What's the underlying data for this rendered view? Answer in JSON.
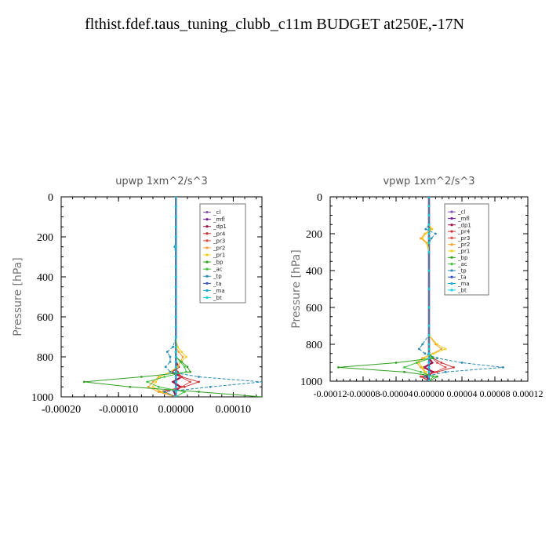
{
  "title": "flthist.fdef.taus_tuning_clubb_c11m  BUDGET at250E,-17N",
  "colors": {
    "_cl": "#8a4fb0",
    "_mfl": "#7a1fa0",
    "_dp1": "#a0144a",
    "_pr4": "#c83232",
    "_pr3": "#e04848",
    "_pr2": "#f0a030",
    "_pr1": "#f0d020",
    "_bp": "#30a020",
    "_ac": "#40c040",
    "_tp": "#2a8ab0",
    "_ta": "#3050c0",
    "_ma": "#20a0d0",
    "_bt": "#10d0e0"
  },
  "chart_data": [
    {
      "type": "line",
      "title": "upwp   1xm^2/s^3",
      "ylabel": "Pressure [hPa]",
      "xlabel": "",
      "xlim": [
        -0.0002,
        0.00015
      ],
      "ylim": [
        1000,
        0
      ],
      "xticks": [
        -0.0002,
        -0.0001,
        0.0,
        0.0001
      ],
      "xtick_labels": [
        "-0.00020",
        "-0.00010",
        "0.00000",
        "0.00010"
      ],
      "yticks": [
        0,
        200,
        400,
        600,
        800,
        1000
      ],
      "ytick_labels": [
        "0",
        "200",
        "400",
        "600",
        "800",
        "1000"
      ],
      "legend": [
        "_cl",
        "_mfl",
        "_dp1",
        "_pr4",
        "_pr3",
        "_pr2",
        "_pr1",
        "_bp",
        "_ac",
        "_tp",
        "_ta",
        "_ma",
        "_bt"
      ],
      "legend_position": "top-right",
      "pressure": [
        0,
        50,
        100,
        150,
        200,
        250,
        300,
        350,
        400,
        450,
        500,
        550,
        600,
        650,
        700,
        750,
        775,
        800,
        825,
        850,
        875,
        900,
        925,
        950,
        975,
        1000
      ],
      "series": [
        {
          "name": "_cl",
          "values": [
            0,
            0,
            0,
            0,
            0,
            0,
            0,
            0,
            0,
            0,
            0,
            0,
            0,
            0,
            0,
            0,
            0,
            0,
            0,
            0,
            0,
            0,
            0,
            0,
            0,
            0
          ]
        },
        {
          "name": "_mfl",
          "values": [
            0,
            0,
            0,
            0,
            0,
            0,
            0,
            0,
            0,
            0,
            0,
            0,
            0,
            0,
            0,
            0,
            0,
            0,
            0,
            0,
            0,
            0,
            0,
            0,
            0,
            0
          ]
        },
        {
          "name": "_dp1",
          "values": [
            0,
            0,
            0,
            0,
            0,
            0,
            0,
            0,
            0,
            0,
            0,
            0,
            0,
            0,
            0,
            0,
            0,
            0,
            0,
            5e-06,
            -8e-06,
            1e-05,
            -5e-06,
            8e-06,
            -3e-06,
            0
          ]
        },
        {
          "name": "_pr4",
          "values": [
            0,
            0,
            0,
            0,
            0,
            0,
            0,
            0,
            0,
            0,
            0,
            0,
            0,
            0,
            0,
            0,
            0,
            0,
            0,
            0,
            3e-06,
            1e-05,
            4e-05,
            1.5e-05,
            -3e-05,
            0
          ]
        },
        {
          "name": "_pr3",
          "values": [
            0,
            0,
            0,
            0,
            0,
            0,
            0,
            0,
            0,
            0,
            0,
            0,
            0,
            0,
            0,
            0,
            0,
            0,
            0,
            0,
            2e-06,
            8e-06,
            2.5e-05,
            1e-05,
            -2e-05,
            0
          ]
        },
        {
          "name": "_pr2",
          "values": [
            0,
            0,
            0,
            0,
            0,
            0,
            0,
            0,
            0,
            0,
            0,
            0,
            0,
            0,
            0,
            0,
            5e-06,
            1.2e-05,
            8e-06,
            2e-06,
            -8e-06,
            -3e-05,
            -4e-05,
            -4.8e-05,
            -3e-05,
            0
          ]
        },
        {
          "name": "_pr1",
          "values": [
            0,
            0,
            0,
            0,
            0,
            0,
            0,
            0,
            0,
            0,
            0,
            0,
            0,
            0,
            0,
            3e-06,
            1e-05,
            1.8e-05,
            8e-06,
            3e-06,
            -1e-05,
            -2.8e-05,
            -3.5e-05,
            -4e-05,
            -2.5e-05,
            0
          ]
        },
        {
          "name": "_bp",
          "values": [
            0,
            0,
            0,
            0,
            0,
            0,
            0,
            0,
            0,
            0,
            0,
            0,
            0,
            0,
            0,
            0,
            0,
            0,
            1e-05,
            2e-05,
            2.5e-05,
            -6e-05,
            -0.00016,
            -8e-05,
            4e-05,
            0.00015
          ]
        },
        {
          "name": "_ac",
          "values": [
            0,
            0,
            0,
            0,
            0,
            0,
            0,
            0,
            0,
            0,
            0,
            0,
            0,
            0,
            0,
            0,
            0,
            0,
            8e-06,
            1.5e-05,
            1.8e-05,
            -2e-05,
            -5e-05,
            -3e-05,
            1.5e-05,
            0
          ]
        },
        {
          "name": "_tp",
          "values": [
            0,
            0,
            0,
            0,
            0,
            -2e-06,
            0,
            0,
            0,
            0,
            0,
            0,
            0,
            0,
            0,
            -5e-06,
            -1.5e-05,
            -1e-05,
            -1e-05,
            -1.8e-05,
            -1e-05,
            4e-05,
            0.00015,
            6e-05,
            -2e-05,
            0
          ]
        },
        {
          "name": "_ta",
          "values": [
            0,
            0,
            0,
            0,
            0,
            0,
            0,
            0,
            0,
            0,
            0,
            0,
            0,
            0,
            0,
            0,
            0,
            0,
            0,
            0,
            0,
            0,
            0,
            0,
            0,
            0
          ]
        },
        {
          "name": "_ma",
          "values": [
            0,
            0,
            0,
            0,
            0,
            0,
            0,
            0,
            0,
            0,
            0,
            0,
            0,
            0,
            0,
            0,
            0,
            0,
            0,
            0,
            0,
            0,
            0,
            0,
            0,
            0
          ]
        },
        {
          "name": "_bt",
          "values": [
            0,
            0,
            0,
            0,
            0,
            0,
            0,
            0,
            0,
            0,
            0,
            0,
            0,
            0,
            0,
            0,
            0,
            0,
            0,
            0,
            0,
            0,
            0,
            0,
            0,
            0
          ]
        }
      ]
    },
    {
      "type": "line",
      "title": "vpwp   1xm^2/s^3",
      "ylabel": "Pressure [hPa]",
      "xlabel": "",
      "xlim": [
        -0.00012,
        0.00012
      ],
      "ylim": [
        1000,
        0
      ],
      "xticks": [
        -0.00012,
        -8e-05,
        -4e-05,
        0.0,
        4e-05,
        8e-05,
        0.00012
      ],
      "xtick_labels": [
        "-0.00012",
        "-0.00008",
        "-0.00004",
        "0.00000",
        "0.00004",
        "0.00008",
        "0.00012"
      ],
      "yticks": [
        0,
        200,
        400,
        600,
        800,
        1000
      ],
      "ytick_labels": [
        "0",
        "200",
        "400",
        "600",
        "800",
        "1000"
      ],
      "legend": [
        "_cl",
        "_mfl",
        "_dp1",
        "_pr4",
        "_pr3",
        "_pr2",
        "_pr1",
        "_bp",
        "_ac",
        "_tp",
        "_ta",
        "_ma",
        "_bt"
      ],
      "legend_position": "top-right",
      "pressure": [
        0,
        50,
        100,
        150,
        175,
        200,
        225,
        250,
        300,
        400,
        500,
        600,
        700,
        750,
        800,
        825,
        850,
        875,
        900,
        925,
        950,
        975,
        1000
      ],
      "series": [
        {
          "name": "_cl",
          "values": [
            0,
            0,
            0,
            0,
            0,
            0,
            0,
            0,
            0,
            0,
            0,
            0,
            0,
            0,
            0,
            0,
            0,
            0,
            0,
            0,
            0,
            0,
            0
          ]
        },
        {
          "name": "_mfl",
          "values": [
            0,
            0,
            0,
            0,
            0,
            0,
            0,
            0,
            0,
            0,
            0,
            0,
            0,
            0,
            0,
            0,
            0,
            0,
            0,
            0,
            0,
            0,
            0
          ]
        },
        {
          "name": "_dp1",
          "values": [
            0,
            0,
            0,
            0,
            0,
            0,
            0,
            0,
            0,
            0,
            0,
            0,
            0,
            0,
            0,
            0,
            0,
            0,
            4e-06,
            -6e-06,
            5e-06,
            -3e-06,
            0
          ]
        },
        {
          "name": "_pr4",
          "values": [
            0,
            0,
            0,
            0,
            0,
            0,
            0,
            0,
            0,
            0,
            0,
            0,
            0,
            0,
            0,
            0,
            0,
            5e-06,
            1.5e-05,
            3e-05,
            1e-05,
            -1e-05,
            0
          ]
        },
        {
          "name": "_pr3",
          "values": [
            0,
            0,
            0,
            0,
            0,
            0,
            0,
            0,
            0,
            0,
            0,
            0,
            0,
            0,
            0,
            0,
            0,
            4e-06,
            1e-05,
            2e-05,
            8e-06,
            -8e-06,
            0
          ]
        },
        {
          "name": "_pr2",
          "values": [
            0,
            0,
            0,
            0,
            3e-06,
            -5e-06,
            -1e-05,
            -3e-06,
            0,
            0,
            0,
            0,
            0,
            0,
            8e-06,
            1.5e-05,
            5e-06,
            -8e-06,
            -1.5e-05,
            -1e-05,
            -5e-06,
            0,
            0
          ]
        },
        {
          "name": "_pr1",
          "values": [
            0,
            0,
            0,
            0,
            4e-06,
            -4e-06,
            -8e-06,
            -2e-06,
            0,
            0,
            0,
            0,
            0,
            0,
            1e-05,
            2e-05,
            6e-06,
            -6e-06,
            -1.2e-05,
            -8e-06,
            -4e-06,
            0,
            0
          ]
        },
        {
          "name": "_bp",
          "values": [
            0,
            0,
            0,
            0,
            0,
            0,
            0,
            0,
            0,
            0,
            0,
            0,
            0,
            0,
            0,
            0,
            0,
            5e-06,
            -4e-05,
            -0.00011,
            -3e-05,
            1e-05,
            0
          ]
        },
        {
          "name": "_ac",
          "values": [
            0,
            0,
            0,
            0,
            0,
            0,
            0,
            0,
            0,
            0,
            0,
            0,
            0,
            0,
            0,
            0,
            0,
            3e-06,
            -1.5e-05,
            -3e-05,
            -1e-05,
            5e-06,
            0
          ]
        },
        {
          "name": "_tp",
          "values": [
            0,
            0,
            0,
            0,
            -4e-06,
            8e-06,
            3e-06,
            0,
            0,
            0,
            0,
            0,
            0,
            0,
            -8e-06,
            -1.2e-05,
            -5e-06,
            1e-05,
            4e-05,
            9e-05,
            2e-05,
            -5e-06,
            0
          ]
        },
        {
          "name": "_ta",
          "values": [
            0,
            0,
            0,
            0,
            0,
            0,
            0,
            0,
            0,
            0,
            0,
            0,
            0,
            0,
            0,
            0,
            0,
            0,
            0,
            0,
            0,
            0,
            0
          ]
        },
        {
          "name": "_ma",
          "values": [
            0,
            0,
            0,
            0,
            0,
            0,
            0,
            0,
            0,
            0,
            0,
            0,
            0,
            0,
            0,
            0,
            0,
            0,
            0,
            0,
            0,
            0,
            0
          ]
        },
        {
          "name": "_bt",
          "values": [
            0,
            0,
            0,
            0,
            0,
            0,
            0,
            0,
            0,
            0,
            0,
            0,
            0,
            0,
            0,
            0,
            0,
            0,
            0,
            0,
            0,
            0,
            0
          ]
        }
      ]
    }
  ]
}
